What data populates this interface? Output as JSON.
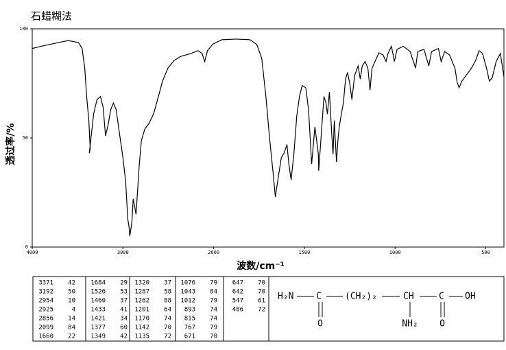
{
  "chart_data": {
    "type": "line",
    "title": "石蜡糊法",
    "xlabel": "波数/cm⁻¹",
    "ylabel": "透过率/%",
    "color": "#000000",
    "xlim": [
      4000,
      400
    ],
    "xticks": [
      4000,
      3000,
      2000,
      1500,
      1000,
      500
    ],
    "ylim": [
      0,
      100
    ],
    "yticks": [
      0,
      50,
      100
    ],
    "x": [
      4000,
      3902,
      3677,
      3602,
      3490,
      3450,
      3421,
      3400,
      3376,
      3361,
      3371,
      3323,
      3286,
      3248,
      3218,
      3192,
      3165,
      3135,
      3105,
      3075,
      3038,
      3000,
      2970,
      2947,
      2932,
      2925,
      2902,
      2887,
      2872,
      2856,
      2842,
      2820,
      2797,
      2760,
      2714,
      2662,
      2609,
      2564,
      2504,
      2436,
      2361,
      2248,
      2173,
      2128,
      2099,
      2068,
      2008,
      1954,
      1877,
      1800,
      1762,
      1735,
      1712,
      1692,
      1673,
      1660,
      1642,
      1627,
      1612,
      1596,
      1585,
      1573,
      1558,
      1542,
      1527,
      1512,
      1492,
      1477,
      1465,
      1460,
      1442,
      1434,
      1423,
      1421,
      1404,
      1392,
      1381,
      1373,
      1362,
      1350,
      1342,
      1335,
      1323,
      1315,
      1308,
      1296,
      1285,
      1273,
      1262,
      1250,
      1238,
      1223,
      1204,
      1192,
      1181,
      1165,
      1150,
      1138,
      1127,
      1108,
      1089,
      1066,
      1050,
      1039,
      1020,
      1004,
      989,
      955,
      917,
      887,
      875,
      841,
      814,
      799,
      761,
      746,
      727,
      700,
      670,
      658,
      647,
      632,
      609,
      579,
      556,
      537,
      518,
      496,
      480,
      465,
      443,
      420,
      400
    ],
    "values": [
      91,
      92,
      94,
      94.6,
      93.7,
      91,
      82,
      69,
      58,
      45,
      43,
      61,
      67.6,
      69,
      64,
      51,
      55.6,
      63,
      66,
      63,
      52,
      41,
      30,
      13,
      9,
      5,
      11,
      22,
      19,
      15,
      23.6,
      37.7,
      48.7,
      54,
      56.6,
      61,
      69,
      76,
      82,
      85.5,
      87.4,
      88.7,
      90,
      88.7,
      85,
      90,
      93,
      95,
      95.3,
      95,
      92.8,
      86.5,
      69,
      50,
      34.6,
      23,
      33,
      41,
      43,
      47,
      37.7,
      30.8,
      42.5,
      60,
      69,
      74,
      73,
      63,
      45.6,
      38,
      55,
      50,
      42.5,
      35,
      55,
      69,
      66,
      61,
      71,
      53,
      42.5,
      58,
      39,
      49,
      55,
      61,
      66,
      77,
      80,
      75,
      67.6,
      78.6,
      83,
      77,
      83,
      85,
      82,
      72,
      82,
      85.5,
      89,
      88,
      85,
      88.7,
      92,
      85,
      90.6,
      92,
      89.6,
      82,
      89.6,
      90.6,
      83,
      89.6,
      91,
      85,
      89.6,
      88,
      82,
      75.5,
      73,
      76,
      78.6,
      82,
      85.5,
      90,
      88.7,
      82,
      76,
      77.5,
      85,
      88.7,
      78
    ]
  },
  "peak_table": [
    [
      [
        3371,
        42
      ],
      [
        3192,
        50
      ],
      [
        2954,
        10
      ],
      [
        2925,
        4
      ],
      [
        2856,
        14
      ],
      [
        2099,
        84
      ],
      [
        1660,
        22
      ]
    ],
    [
      [
        1684,
        29
      ],
      [
        1526,
        53
      ],
      [
        1460,
        37
      ],
      [
        1433,
        41
      ],
      [
        1421,
        34
      ],
      [
        1377,
        60
      ],
      [
        1349,
        42
      ]
    ],
    [
      [
        1320,
        37
      ],
      [
        1287,
        58
      ],
      [
        1262,
        88
      ],
      [
        1201,
        64
      ],
      [
        1170,
        74
      ],
      [
        1142,
        70
      ],
      [
        1135,
        72
      ]
    ],
    [
      [
        1076,
        79
      ],
      [
        1043,
        84
      ],
      [
        1012,
        79
      ],
      [
        893,
        74
      ],
      [
        815,
        74
      ],
      [
        767,
        79
      ],
      [
        671,
        70
      ]
    ],
    [
      [
        647,
        70
      ],
      [
        642,
        70
      ],
      [
        547,
        61
      ],
      [
        486,
        72
      ]
    ]
  ],
  "structure": {
    "main": [
      "H₂N",
      "C",
      "(CH₂)₂",
      "CH",
      "C",
      "OH"
    ],
    "below": [
      "O",
      "NH₂",
      "O"
    ]
  }
}
